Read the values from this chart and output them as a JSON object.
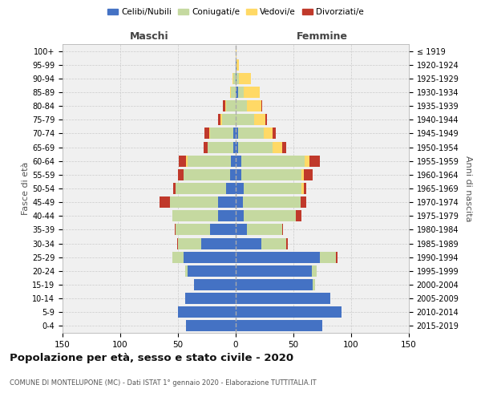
{
  "age_groups": [
    "0-4",
    "5-9",
    "10-14",
    "15-19",
    "20-24",
    "25-29",
    "30-34",
    "35-39",
    "40-44",
    "45-49",
    "50-54",
    "55-59",
    "60-64",
    "65-69",
    "70-74",
    "75-79",
    "80-84",
    "85-89",
    "90-94",
    "95-99",
    "100+"
  ],
  "birth_years": [
    "2015-2019",
    "2010-2014",
    "2005-2009",
    "2000-2004",
    "1995-1999",
    "1990-1994",
    "1985-1989",
    "1980-1984",
    "1975-1979",
    "1970-1974",
    "1965-1969",
    "1960-1964",
    "1955-1959",
    "1950-1954",
    "1945-1949",
    "1940-1944",
    "1935-1939",
    "1930-1934",
    "1925-1929",
    "1920-1924",
    "≤ 1919"
  ],
  "male": {
    "celibi": [
      43,
      50,
      44,
      36,
      42,
      45,
      30,
      22,
      15,
      15,
      8,
      5,
      4,
      2,
      2,
      0,
      0,
      0,
      0,
      0,
      0
    ],
    "coniugati": [
      0,
      0,
      0,
      0,
      2,
      10,
      20,
      30,
      40,
      42,
      44,
      40,
      38,
      22,
      20,
      12,
      8,
      4,
      2,
      0,
      0
    ],
    "vedovi": [
      0,
      0,
      0,
      0,
      0,
      0,
      0,
      0,
      0,
      0,
      0,
      0,
      1,
      0,
      1,
      1,
      1,
      1,
      1,
      0,
      0
    ],
    "divorziati": [
      0,
      0,
      0,
      0,
      0,
      0,
      1,
      1,
      0,
      9,
      2,
      5,
      6,
      4,
      4,
      2,
      2,
      0,
      0,
      0,
      0
    ]
  },
  "female": {
    "nubili": [
      75,
      92,
      82,
      67,
      66,
      73,
      22,
      10,
      7,
      6,
      7,
      5,
      5,
      2,
      2,
      0,
      0,
      2,
      1,
      1,
      0
    ],
    "coniugate": [
      0,
      0,
      0,
      2,
      4,
      14,
      22,
      30,
      45,
      50,
      50,
      52,
      55,
      30,
      22,
      16,
      10,
      5,
      2,
      0,
      0
    ],
    "vedove": [
      0,
      0,
      0,
      0,
      0,
      0,
      0,
      0,
      0,
      0,
      2,
      2,
      4,
      8,
      8,
      10,
      12,
      14,
      10,
      2,
      1
    ],
    "divorziate": [
      0,
      0,
      0,
      0,
      0,
      1,
      1,
      1,
      5,
      5,
      2,
      8,
      9,
      4,
      3,
      1,
      1,
      0,
      0,
      0,
      0
    ]
  },
  "colors": {
    "celibi_nubili": "#4472C4",
    "coniugati": "#C5D9A0",
    "vedovi": "#FFD966",
    "divorziati": "#C0392B"
  },
  "title": "Popolazione per età, sesso e stato civile - 2020",
  "subtitle": "COMUNE DI MONTELUPONE (MC) - Dati ISTAT 1° gennaio 2020 - Elaborazione TUTTITALIA.IT",
  "xlabel_left": "Maschi",
  "xlabel_right": "Femmine",
  "ylabel_left": "Fasce di età",
  "ylabel_right": "Anni di nascita",
  "xlim": 150,
  "bg_color": "#f0f0f0",
  "grid_color": "#cccccc"
}
